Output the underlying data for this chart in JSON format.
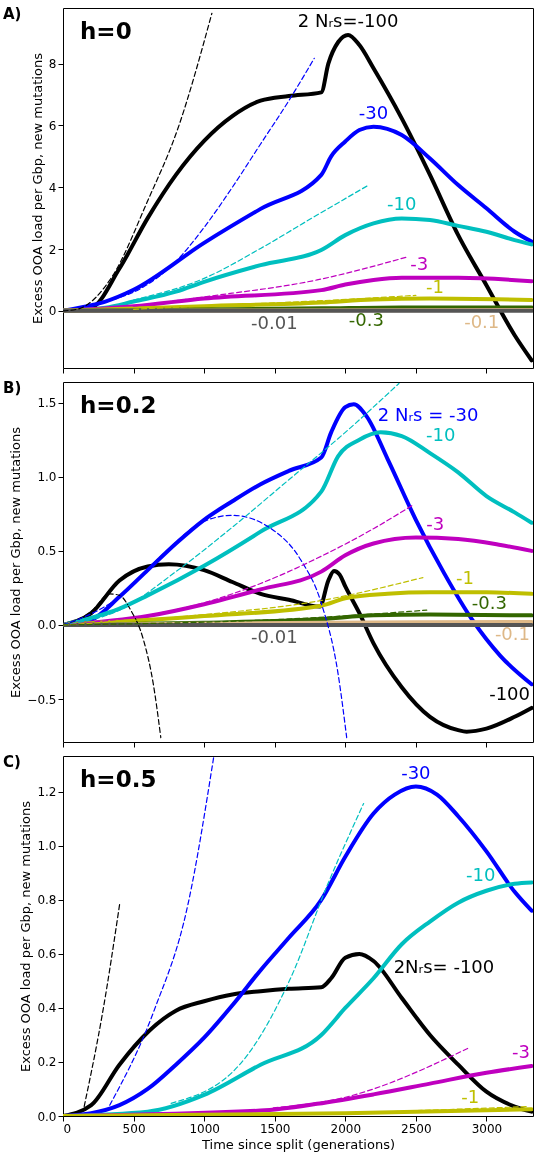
{
  "chart_data": [
    {
      "type": "line",
      "title": "A)",
      "subtitle": "h=0",
      "ylabel": "Excess OOA load per Gbp, new mutations",
      "xlim": [
        0,
        3330
      ],
      "xticks": [
        0,
        500,
        1000,
        1500,
        2000,
        2500,
        3000
      ],
      "ylim": [
        -1.85,
        9.8
      ],
      "yticks": [
        0,
        2,
        4,
        6,
        8
      ],
      "tick_labels": "y",
      "line_style": "solid",
      "series": [
        {
          "name": "2 Nᵣs=-100",
          "color": "#000000",
          "x": [
            0,
            200,
            400,
            600,
            800,
            1000,
            1200,
            1400,
            1600,
            1830,
            1880,
            1950,
            2020,
            2100,
            2200,
            2400,
            2600,
            2800,
            3000,
            3200,
            3320
          ],
          "values": [
            0,
            0.1,
            1.37,
            3.0,
            4.4,
            5.5,
            6.3,
            6.8,
            6.95,
            7.07,
            8.0,
            8.7,
            8.93,
            8.6,
            7.85,
            6.23,
            4.4,
            2.45,
            0.83,
            -0.79,
            -1.6
          ]
        },
        {
          "name": "-30",
          "color": "#0000ff",
          "x": [
            0,
            200,
            300,
            500,
            1000,
            1400,
            1830,
            1900,
            2000,
            2100,
            2200,
            2400,
            2600,
            2800,
            3000,
            3200,
            3320
          ],
          "values": [
            0,
            0.18,
            0.3,
            0.68,
            2.2,
            3.3,
            4.4,
            5.0,
            5.48,
            5.85,
            5.96,
            5.69,
            4.93,
            4.07,
            3.32,
            2.56,
            2.24
          ]
        },
        {
          "name": "-10",
          "color": "#00bfbf",
          "x": [
            0,
            300,
            500,
            800,
            1000,
            1400,
            1830,
            2000,
            2200,
            2400,
            2600,
            2800,
            3000,
            3200,
            3320
          ],
          "values": [
            0,
            0.1,
            0.3,
            0.62,
            0.94,
            1.48,
            1.97,
            2.45,
            2.83,
            2.99,
            2.94,
            2.75,
            2.56,
            2.29,
            2.15
          ]
        },
        {
          "name": "-3",
          "color": "#bf00bf",
          "x": [
            0,
            500,
            1000,
            1830,
            2000,
            2200,
            2400,
            2800,
            3320
          ],
          "values": [
            0,
            0.15,
            0.4,
            0.67,
            0.85,
            1.0,
            1.07,
            1.07,
            0.96
          ]
        },
        {
          "name": "-1",
          "color": "#bfbf00",
          "x": [
            0,
            1000,
            1830,
            2200,
            2600,
            3320
          ],
          "values": [
            0,
            0.15,
            0.27,
            0.37,
            0.4,
            0.35
          ]
        },
        {
          "name": "-0.3",
          "color": "#336600",
          "x": [
            0,
            1000,
            1830,
            2400,
            3320
          ],
          "values": [
            0,
            0.04,
            0.08,
            0.11,
            0.11
          ]
        },
        {
          "name": "-0.1",
          "color": "#deb887",
          "x": [
            0,
            3320
          ],
          "values": [
            0,
            0.03
          ]
        },
        {
          "name": "-0.01",
          "color": "#555555",
          "x": [
            0,
            3320
          ],
          "values": [
            0,
            0
          ]
        },
        {
          "color": "#000000",
          "line_style": "dashed",
          "x": [
            0,
            100,
            355,
            597,
            814,
            1055
          ],
          "values": [
            0,
            0.05,
            1.16,
            3.53,
            5.9,
            9.63
          ]
        },
        {
          "color": "#0000ff",
          "line_style": "dashed",
          "x": [
            300,
            550,
            800,
            1000,
            1200,
            1400,
            1600,
            1780
          ],
          "values": [
            0.3,
            0.72,
            1.6,
            2.7,
            4.0,
            5.4,
            6.8,
            8.17
          ]
        },
        {
          "color": "#00bfbf",
          "line_style": "dashed",
          "x": [
            500,
            1000,
            1400,
            1800,
            2166
          ],
          "values": [
            0.35,
            1.05,
            2.02,
            3.1,
            4.07
          ]
        },
        {
          "color": "#bf00bf",
          "line_style": "dashed",
          "x": [
            500,
            1000,
            1800,
            2444
          ],
          "values": [
            0.15,
            0.45,
            1.0,
            1.75
          ]
        },
        {
          "color": "#bfbf00",
          "line_style": "dashed",
          "x": [
            500,
            1000,
            1800,
            2500
          ],
          "values": [
            0.05,
            0.16,
            0.32,
            0.5
          ]
        }
      ]
    },
    {
      "type": "line",
      "title": "B)",
      "subtitle": "h=0.2",
      "ylabel": "Excess OOA load per Gbp, new mutations",
      "xlim": [
        0,
        3330
      ],
      "xticks": [
        0,
        500,
        1000,
        1500,
        2000,
        2500,
        3000
      ],
      "ylim": [
        -0.79,
        1.64
      ],
      "yticks": [
        {
          "value": -0.5,
          "label": "−0.5"
        },
        {
          "value": 0,
          "label": "0.0"
        },
        0.5,
        {
          "value": 1,
          "label": "1.0"
        },
        1.5
      ],
      "tick_labels": "y",
      "line_style": "solid",
      "series": [
        {
          "name": "-100",
          "color": "#000000",
          "x": [
            0,
            200,
            400,
            600,
            750,
            1000,
            1200,
            1400,
            1600,
            1820,
            1880,
            1920,
            1960,
            2000,
            2100,
            2200,
            2400,
            2600,
            2800,
            2860,
            3000,
            3200,
            3320
          ],
          "values": [
            0,
            0.08,
            0.3,
            0.395,
            0.41,
            0.37,
            0.29,
            0.21,
            0.17,
            0.124,
            0.3,
            0.365,
            0.34,
            0.26,
            0.08,
            -0.124,
            -0.42,
            -0.62,
            -0.71,
            -0.72,
            -0.7,
            -0.62,
            -0.56
          ]
        },
        {
          "name": "2 Nᵣs = -30",
          "color": "#0000ff",
          "x": [
            0,
            200,
            400,
            600,
            800,
            1000,
            1200,
            1400,
            1600,
            1830,
            1900,
            2000,
            2060,
            2150,
            2300,
            2500,
            2700,
            2900,
            3100,
            3320
          ],
          "values": [
            0,
            0.034,
            0.19,
            0.37,
            0.55,
            0.71,
            0.835,
            0.95,
            1.04,
            1.13,
            1.3,
            1.47,
            1.49,
            1.41,
            1.12,
            0.71,
            0.35,
            0.034,
            -0.21,
            -0.4
          ]
        },
        {
          "name": "-10",
          "color": "#00bfbf",
          "x": [
            0,
            400,
            600,
            1000,
            1400,
            1830,
            1950,
            2100,
            2250,
            2400,
            2600,
            2800,
            3000,
            3200,
            3320
          ],
          "values": [
            0,
            0.11,
            0.2,
            0.4,
            0.63,
            0.9,
            1.14,
            1.25,
            1.3,
            1.275,
            1.16,
            1.03,
            0.87,
            0.76,
            0.69
          ]
        },
        {
          "name": "-3",
          "color": "#bf00bf",
          "x": [
            0,
            600,
            1000,
            1400,
            1830,
            2000,
            2200,
            2500,
            2800,
            3100,
            3320
          ],
          "values": [
            0,
            0.06,
            0.14,
            0.24,
            0.36,
            0.47,
            0.55,
            0.59,
            0.58,
            0.54,
            0.5
          ]
        },
        {
          "name": "-1",
          "color": "#bfbf00",
          "x": [
            0,
            1000,
            1830,
            2000,
            2300,
            2600,
            3000,
            3320
          ],
          "values": [
            0,
            0.06,
            0.13,
            0.18,
            0.21,
            0.22,
            0.22,
            0.21
          ]
        },
        {
          "name": "-0.3",
          "color": "#336600",
          "x": [
            0,
            1000,
            1830,
            2200,
            2600,
            3320
          ],
          "values": [
            0,
            0.015,
            0.04,
            0.065,
            0.07,
            0.065
          ]
        },
        {
          "name": "-0.1",
          "color": "#deb887",
          "x": [
            0,
            1830,
            3320
          ],
          "values": [
            0,
            0.015,
            0.02
          ]
        },
        {
          "name": "-0.01",
          "color": "#555555",
          "x": [
            0,
            3320
          ],
          "values": [
            0,
            0
          ]
        },
        {
          "color": "#000000",
          "line_style": "dashed",
          "x": [
            0,
            200,
            330,
            400,
            480,
            570,
            640,
            693
          ],
          "values": [
            0,
            0.09,
            0.21,
            0.2,
            0.1,
            -0.1,
            -0.4,
            -0.76
          ]
        },
        {
          "color": "#0000ff",
          "line_style": "dashed",
          "x": [
            0,
            400,
            700,
            1000,
            1200,
            1490,
            1684,
            1829,
            1949,
            2010
          ],
          "values": [
            0,
            0.19,
            0.47,
            0.7,
            0.74,
            0.64,
            0.44,
            0.15,
            -0.33,
            -0.76
          ]
        },
        {
          "color": "#00bfbf",
          "line_style": "dashed",
          "x": [
            0,
            400,
            800,
            1200,
            1600,
            2000,
            2380
          ],
          "values": [
            0,
            0.1,
            0.36,
            0.66,
            0.98,
            1.3,
            1.63
          ]
        },
        {
          "color": "#bf00bf",
          "line_style": "dashed",
          "x": [
            0,
            1000,
            1400,
            1800,
            2200,
            2480
          ],
          "values": [
            0,
            0.15,
            0.28,
            0.45,
            0.65,
            0.81
          ]
        },
        {
          "color": "#bfbf00",
          "line_style": "dashed",
          "x": [
            0,
            1000,
            1800,
            2550
          ],
          "values": [
            0,
            0.07,
            0.16,
            0.32
          ]
        },
        {
          "color": "#336600",
          "line_style": "dashed",
          "x": [
            0,
            1800,
            2577
          ],
          "values": [
            0,
            0.05,
            0.1
          ]
        }
      ]
    },
    {
      "type": "line",
      "title": "C)",
      "subtitle": "h=0.5",
      "xlabel": "Time since split (generations)",
      "ylabel": "Excess OOA load per Gbp, new mutations",
      "xlim": [
        0,
        3330
      ],
      "xticks": [
        0,
        500,
        1000,
        1500,
        2000,
        2500,
        3000
      ],
      "ylim": [
        0,
        1.333
      ],
      "yticks": [
        {
          "value": 0,
          "label": "0.0"
        },
        0.2,
        0.4,
        0.6,
        0.8,
        {
          "value": 1,
          "label": "1.0"
        },
        1.2
      ],
      "line_style": "solid",
      "series": [
        {
          "name": "2Nᵣs= -100",
          "color": "#000000",
          "x": [
            0,
            200,
            400,
            600,
            800,
            1000,
            1200,
            1400,
            1600,
            1830,
            1900,
            2000,
            2100,
            2200,
            2400,
            2600,
            2800,
            3000,
            3200,
            3320
          ],
          "values": [
            0,
            0.04,
            0.19,
            0.31,
            0.39,
            0.425,
            0.45,
            0.462,
            0.471,
            0.477,
            0.51,
            0.586,
            0.6,
            0.574,
            0.437,
            0.3,
            0.19,
            0.09,
            0.035,
            0.016
          ]
        },
        {
          "name": "-30",
          "color": "#0000ff",
          "x": [
            0,
            200,
            400,
            600,
            800,
            1000,
            1200,
            1400,
            1600,
            1830,
            2000,
            2200,
            2350,
            2500,
            2650,
            2800,
            3000,
            3200,
            3320
          ],
          "values": [
            0,
            0.01,
            0.04,
            0.1,
            0.19,
            0.29,
            0.41,
            0.54,
            0.66,
            0.8,
            0.96,
            1.12,
            1.19,
            1.22,
            1.19,
            1.11,
            0.98,
            0.83,
            0.76
          ]
        },
        {
          "name": "-10",
          "color": "#00bfbf",
          "x": [
            0,
            600,
            1000,
            1400,
            1830,
            2000,
            2200,
            2400,
            2600,
            2800,
            3000,
            3200,
            3320
          ],
          "values": [
            0,
            0.016,
            0.078,
            0.19,
            0.3,
            0.4,
            0.51,
            0.636,
            0.72,
            0.79,
            0.834,
            0.86,
            0.865
          ]
        },
        {
          "name": "-3",
          "color": "#bf00bf",
          "x": [
            0,
            1400,
            1800,
            2200,
            2600,
            3000,
            3320
          ],
          "values": [
            0,
            0.02,
            0.045,
            0.08,
            0.12,
            0.16,
            0.185
          ]
        },
        {
          "name": "-1",
          "color": "#bfbf00",
          "x": [
            0,
            2000,
            3320
          ],
          "values": [
            0,
            0.01,
            0.025
          ]
        },
        {
          "color": "#000000",
          "line_style": "dashed",
          "x": [
            150,
            283,
            403
          ],
          "values": [
            0.035,
            0.39,
            0.79
          ]
        },
        {
          "color": "#0000ff",
          "line_style": "dashed",
          "x": [
            331,
            645,
            886,
            1068
          ],
          "values": [
            0.04,
            0.39,
            0.785,
            1.33
          ]
        },
        {
          "color": "#00bfbf",
          "line_style": "dashed",
          "x": [
            766,
            1251,
            1612,
            1877,
            2130
          ],
          "values": [
            0.047,
            0.19,
            0.51,
            0.86,
            1.157
          ]
        },
        {
          "color": "#bf00bf",
          "line_style": "dashed",
          "x": [
            1490,
            1973,
            2867
          ],
          "values": [
            0.03,
            0.066,
            0.25
          ]
        },
        {
          "color": "#bfbf00",
          "line_style": "dashed",
          "x": [
            2000,
            3300
          ],
          "values": [
            0.01,
            0.035
          ]
        }
      ]
    }
  ]
}
